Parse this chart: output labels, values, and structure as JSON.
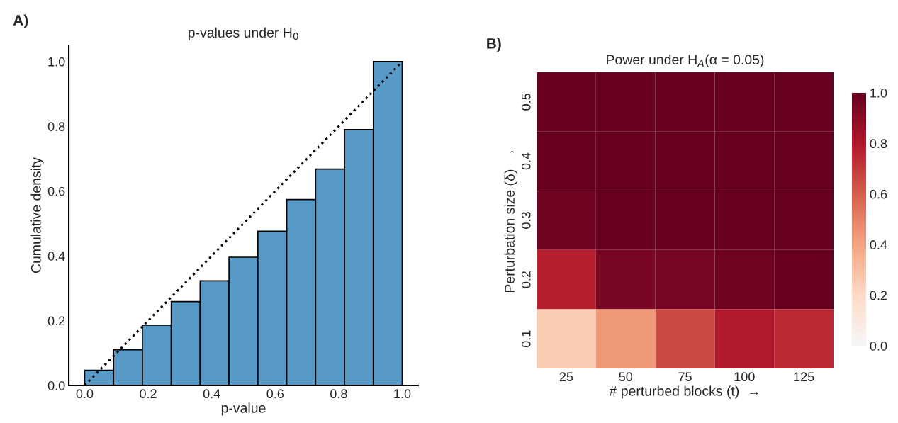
{
  "chart_data": [
    {
      "type": "histogram",
      "title": "p-values under H$_{0}$",
      "xlabel": "p-value",
      "ylabel": "Cumulative density",
      "annotations": [
        "A)"
      ],
      "bins": [
        0,
        0.0909,
        0.1818,
        0.2727,
        0.3636,
        0.4545,
        0.5455,
        0.6364,
        0.7273,
        0.8182,
        0.9091,
        1.0
      ],
      "values": [
        0.047,
        0.11,
        0.186,
        0.259,
        0.323,
        0.396,
        0.476,
        0.574,
        0.668,
        0.79,
        1.0
      ],
      "color": "#5799c7",
      "series": [
        {
          "type": "line",
          "x": [
            0,
            1
          ],
          "values": [
            0,
            1
          ],
          "color": "#000000",
          "line_style": "dotted"
        }
      ],
      "xlim": [
        -0.05,
        1.05
      ],
      "ylim": [
        0,
        1.05
      ],
      "xticks": [
        {
          "value": 0,
          "label": "0.0"
        },
        0.2,
        0.4,
        0.6,
        0.8,
        {
          "value": 1,
          "label": "1.0"
        }
      ],
      "yticks": [
        {
          "value": 0,
          "label": "0.0"
        },
        0.2,
        0.4,
        0.6,
        0.8,
        {
          "value": 1,
          "label": "1.0"
        }
      ],
      "grid": false,
      "legend": false
    },
    {
      "type": "heatmap",
      "title": "Power under H$_{A}$(α = 0.05)",
      "xlabel": "# perturbed blocks (t)  →",
      "ylabel": "Perturbation size (δ)  →",
      "annotations": [
        "B)"
      ],
      "categories": [
        "25",
        "50",
        "75",
        "100",
        "125"
      ],
      "y_categories": [
        "0.5",
        "0.4",
        "0.3",
        "0.2",
        "0.1"
      ],
      "cells": [
        [
          1.0,
          1.0,
          1.0,
          1.0,
          1.0
        ],
        [
          1.0,
          1.0,
          1.0,
          1.0,
          1.0
        ],
        [
          0.97,
          1.0,
          1.0,
          1.0,
          1.0
        ],
        [
          0.78,
          0.95,
          0.96,
          0.97,
          1.0
        ],
        [
          0.25,
          0.43,
          0.66,
          0.8,
          0.75
        ]
      ],
      "clim": [
        0,
        1
      ],
      "cticks": [
        {
          "value": 0,
          "label": "0.0"
        },
        0.2,
        0.4,
        0.6,
        0.8,
        {
          "value": 1,
          "label": "1.0"
        }
      ]
    }
  ]
}
